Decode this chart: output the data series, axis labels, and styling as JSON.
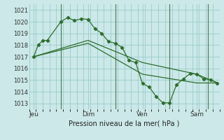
{
  "xlabel": "Pression niveau de la mer( hPa )",
  "background_color": "#cce8e8",
  "grid_color": "#99cccc",
  "line_color": "#2d6e2d",
  "vline_color": "#4a7a4a",
  "ylim": [
    1012.5,
    1021.5
  ],
  "xlim": [
    0,
    168
  ],
  "yticks": [
    1013,
    1014,
    1015,
    1016,
    1017,
    1018,
    1019,
    1020,
    1021
  ],
  "day_labels": [
    "Jeu",
    "Dim",
    "Ven",
    "Sam"
  ],
  "day_positions": [
    4,
    52,
    100,
    148
  ],
  "vline_positions": [
    28,
    76,
    124,
    158
  ],
  "series1_x": [
    4,
    8,
    12,
    16,
    28,
    34,
    40,
    46,
    52,
    58,
    64,
    70,
    76,
    82,
    88,
    94,
    100,
    106,
    112,
    118,
    124,
    130,
    136,
    142,
    148,
    154,
    160,
    166
  ],
  "series1_y": [
    1017.0,
    1018.0,
    1018.4,
    1018.4,
    1020.0,
    1020.35,
    1020.1,
    1020.25,
    1020.2,
    1019.4,
    1019.0,
    1018.3,
    1018.15,
    1017.8,
    1016.7,
    1016.5,
    1014.7,
    1014.4,
    1013.6,
    1013.05,
    1013.05,
    1014.6,
    1015.1,
    1015.55,
    1015.5,
    1015.1,
    1015.05,
    1014.75
  ],
  "series2_x": [
    4,
    52,
    100,
    148,
    166
  ],
  "series2_y": [
    1017.0,
    1018.4,
    1016.5,
    1015.5,
    1014.75
  ],
  "series3_x": [
    4,
    52,
    100,
    148,
    166
  ],
  "series3_y": [
    1017.0,
    1018.15,
    1015.5,
    1014.75,
    1014.75
  ]
}
